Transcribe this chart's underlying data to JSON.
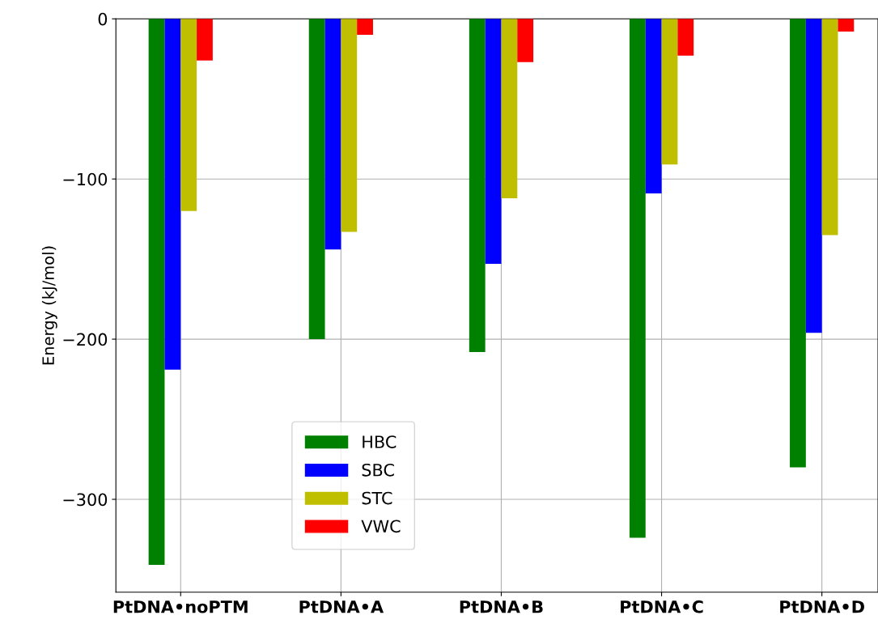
{
  "chart_data": {
    "type": "bar",
    "ylabel": "Energy (kJ/mol)",
    "categories": [
      "PtDNA•noPTM",
      "PtDNA•A",
      "PtDNA•B",
      "PtDNA•C",
      "PtDNA•D"
    ],
    "series": [
      {
        "name": "HBC",
        "color": "#008000",
        "values": [
          -341,
          -200,
          -208,
          -324,
          -280
        ]
      },
      {
        "name": "SBC",
        "color": "#0000ff",
        "values": [
          -219,
          -144,
          -153,
          -109,
          -196
        ]
      },
      {
        "name": "STC",
        "color": "#bfbf00",
        "values": [
          -120,
          -133,
          -112,
          -91,
          -135
        ]
      },
      {
        "name": "VWC",
        "color": "#ff0000",
        "values": [
          -26,
          -10,
          -27,
          -23,
          -8
        ]
      }
    ],
    "ylim": [
      -358,
      0
    ],
    "yticks": [
      {
        "value": -300,
        "label": "−300"
      },
      {
        "value": -200,
        "label": "−200"
      },
      {
        "value": -100,
        "label": "−100"
      },
      0
    ],
    "grid": true,
    "legend": "bottom left"
  }
}
